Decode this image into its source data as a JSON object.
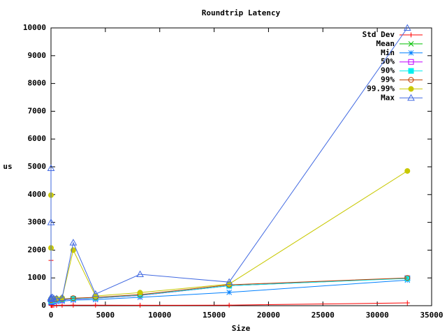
{
  "chart_data": {
    "type": "line",
    "title": "Roundtrip Latency",
    "x_label": "Size",
    "y_label": "us",
    "x": [
      1,
      2,
      4,
      8,
      16,
      32,
      64,
      128,
      256,
      512,
      1024,
      2048,
      4096,
      8192,
      16384,
      32768
    ],
    "xlim": [
      0,
      35000
    ],
    "xticks": [
      0,
      5000,
      10000,
      15000,
      20000,
      25000,
      30000,
      35000
    ],
    "ylim": [
      0,
      10000
    ],
    "yticks": [
      0,
      1000,
      2000,
      3000,
      4000,
      5000,
      6000,
      7000,
      8000,
      9000,
      10000
    ],
    "grid": false,
    "legend": "top-right",
    "series": [
      {
        "name": "Std Dev",
        "color": "#ff0000",
        "marker": "plus",
        "values": [
          1630,
          60,
          20,
          15,
          12,
          10,
          10,
          10,
          12,
          12,
          15,
          20,
          20,
          15,
          20,
          100
        ]
      },
      {
        "name": "Mean",
        "color": "#00c000",
        "marker": "cross",
        "values": [
          180,
          170,
          170,
          170,
          175,
          175,
          180,
          185,
          190,
          200,
          210,
          240,
          270,
          370,
          720,
          990
        ]
      },
      {
        "name": "Min",
        "color": "#0080ff",
        "marker": "star",
        "values": [
          120,
          110,
          110,
          110,
          115,
          115,
          120,
          125,
          130,
          140,
          160,
          200,
          220,
          300,
          480,
          920
        ]
      },
      {
        "name": "50%",
        "color": "#c000ff",
        "marker": "square",
        "values": [
          170,
          165,
          165,
          165,
          170,
          170,
          175,
          180,
          185,
          195,
          205,
          240,
          270,
          370,
          720,
          990
        ]
      },
      {
        "name": "90%",
        "color": "#00eeee",
        "marker": "fsquare",
        "values": [
          190,
          180,
          180,
          180,
          185,
          185,
          190,
          195,
          200,
          210,
          220,
          250,
          280,
          380,
          720,
          980
        ]
      },
      {
        "name": "99%",
        "color": "#c04000",
        "marker": "circle",
        "values": [
          220,
          200,
          200,
          200,
          205,
          205,
          210,
          215,
          220,
          230,
          240,
          270,
          300,
          400,
          750,
          1000
        ]
      },
      {
        "name": "99.99%",
        "color": "#c8c800",
        "marker": "fcircle",
        "values": [
          3980,
          2080,
          250,
          230,
          220,
          220,
          230,
          240,
          250,
          260,
          280,
          2000,
          350,
          470,
          780,
          4850
        ]
      },
      {
        "name": "Max",
        "color": "#4169e1",
        "marker": "triangle",
        "values": [
          4950,
          3000,
          280,
          300,
          250,
          230,
          250,
          300,
          260,
          250,
          280,
          2270,
          420,
          1130,
          850,
          10000
        ]
      }
    ]
  }
}
